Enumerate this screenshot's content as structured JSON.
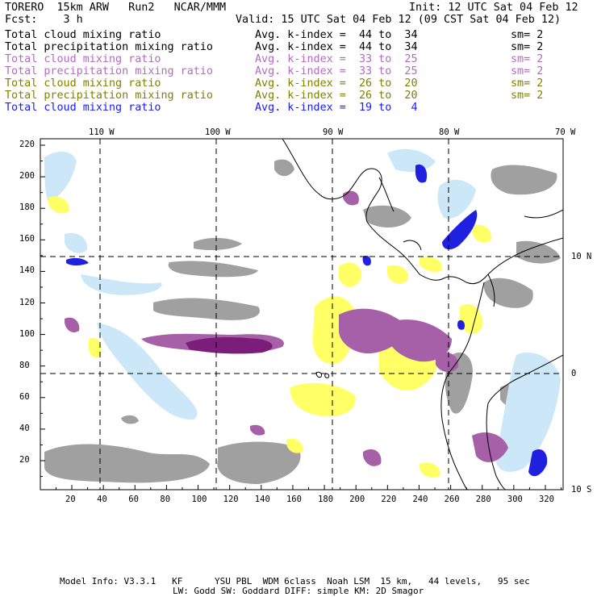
{
  "header": {
    "model": "TORERO  15km ARW   Run2   NCAR/MMM",
    "init": "Init: 12 UTC Sat 04 Feb 12",
    "fcst": "Fcst:    3 h",
    "valid": "Valid: 15 UTC Sat 04 Feb 12 (09 CST Sat 04 Feb 12)"
  },
  "legend": [
    {
      "field": "Total cloud mixing ratio",
      "index": "Avg. k-index = ",
      "range": "44 to  34",
      "sm": "sm= 2",
      "color": "#000000"
    },
    {
      "field": "Total precipitation mixing ratio",
      "index": "Avg. k-index = ",
      "range": "44 to  34",
      "sm": "sm= 2",
      "color": "#000000"
    },
    {
      "field": "Total cloud mixing ratio",
      "index": "Avg. k-index = ",
      "range": "33 to  25",
      "sm": "sm= 2",
      "color": "#b36bc2"
    },
    {
      "field": "Total precipitation mixing ratio",
      "index": "Avg. k-index = ",
      "range": "33 to  25",
      "sm": "sm= 2",
      "color": "#b36bc2"
    },
    {
      "field": "Total cloud mixing ratio",
      "index": "Avg. k-index = ",
      "range": "26 to  20",
      "sm": "sm= 2",
      "color": "#808000"
    },
    {
      "field": "Total precipitation mixing ratio",
      "index": "Avg. k-index = ",
      "range": "26 to  20",
      "sm": "sm= 2",
      "color": "#808000"
    },
    {
      "field": "Total cloud mixing ratio",
      "index": "Avg. k-index = ",
      "range": "19 to   4",
      "sm": "",
      "color": "#1a1aff"
    }
  ],
  "lon_labels": [
    "110 W",
    "100 W",
    "90 W",
    "80 W",
    "70 W"
  ],
  "lat_labels": [
    "10 N",
    "0",
    "10 S"
  ],
  "y_ticks": [
    "220",
    "200",
    "180",
    "160",
    "140",
    "120",
    "100",
    "80",
    "60",
    "40",
    "20"
  ],
  "x_ticks": [
    "20",
    "40",
    "60",
    "80",
    "100",
    "120",
    "140",
    "160",
    "180",
    "200",
    "220",
    "240",
    "260",
    "280",
    "300",
    "320"
  ],
  "footer": {
    "line1": "Model Info: V3.3.1   KF      YSU PBL  WDM 6class  Noah LSM  15 km,   44 levels,   95 sec",
    "line2": "LW: Godd SW: Goddard DIFF: simple KM: 2D Smagor"
  },
  "colors": {
    "gray": "#a0a0a0",
    "purple": "#a560a8",
    "dark_purple": "#7b1e7a",
    "yellow": "#ffff66",
    "light_blue": "#cce8f8",
    "blue": "#2020e0"
  }
}
